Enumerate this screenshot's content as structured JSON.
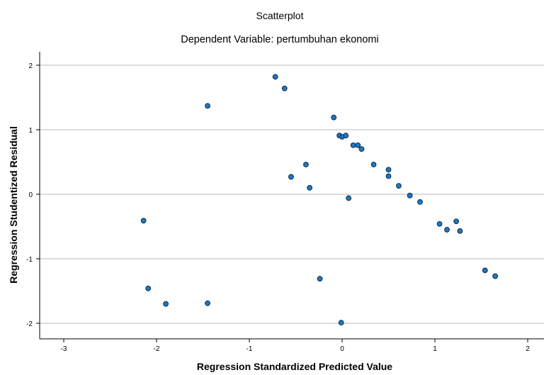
{
  "chart_data": {
    "type": "scatter",
    "title": "Scatterplot",
    "subtitle": "Dependent Variable: pertumbuhan ekonomi",
    "xlabel": "Regression Standardized Predicted Value",
    "ylabel": "Regression Studentized Residual",
    "xlim": [
      -3.3,
      2.2
    ],
    "ylim": [
      -2.2,
      2.0
    ],
    "xticks": [
      -3,
      -2,
      -1,
      0,
      1,
      2
    ],
    "yticks": [
      -2,
      -1,
      0,
      1,
      2
    ],
    "xtick_labels": [
      "-3",
      "-2",
      "-1",
      "0",
      "1",
      "2"
    ],
    "ytick_labels": [
      "-2",
      "-1",
      "0",
      "1",
      "2"
    ],
    "grid": "horizontal",
    "marker_color": "#1f78c4",
    "marker_edge": "#0b2a45",
    "gridline_color": "#c8c8c8",
    "points": [
      {
        "x": -2.14,
        "y": -0.41
      },
      {
        "x": -2.09,
        "y": -1.46
      },
      {
        "x": -1.9,
        "y": -1.7
      },
      {
        "x": -1.45,
        "y": 1.37
      },
      {
        "x": -1.45,
        "y": -1.69
      },
      {
        "x": -0.72,
        "y": 1.82
      },
      {
        "x": -0.62,
        "y": 1.64
      },
      {
        "x": -0.55,
        "y": 0.27
      },
      {
        "x": -0.39,
        "y": 0.46
      },
      {
        "x": -0.35,
        "y": 0.1
      },
      {
        "x": -0.24,
        "y": -1.31
      },
      {
        "x": -0.09,
        "y": 1.19
      },
      {
        "x": -0.03,
        "y": 0.91
      },
      {
        "x": 0.0,
        "y": 0.89
      },
      {
        "x": 0.04,
        "y": 0.91
      },
      {
        "x": 0.07,
        "y": -0.06
      },
      {
        "x": 0.12,
        "y": 0.76
      },
      {
        "x": 0.17,
        "y": 0.76
      },
      {
        "x": 0.21,
        "y": 0.7
      },
      {
        "x": 0.34,
        "y": 0.46
      },
      {
        "x": 0.5,
        "y": 0.38
      },
      {
        "x": 0.5,
        "y": 0.28
      },
      {
        "x": 0.61,
        "y": 0.13
      },
      {
        "x": 0.73,
        "y": -0.02
      },
      {
        "x": 0.84,
        "y": -0.12
      },
      {
        "x": -0.01,
        "y": -1.99
      },
      {
        "x": 1.05,
        "y": -0.46
      },
      {
        "x": 1.13,
        "y": -0.55
      },
      {
        "x": 1.23,
        "y": -0.42
      },
      {
        "x": 1.27,
        "y": -0.57
      },
      {
        "x": 1.54,
        "y": -1.18
      },
      {
        "x": 1.65,
        "y": -1.27
      }
    ]
  }
}
